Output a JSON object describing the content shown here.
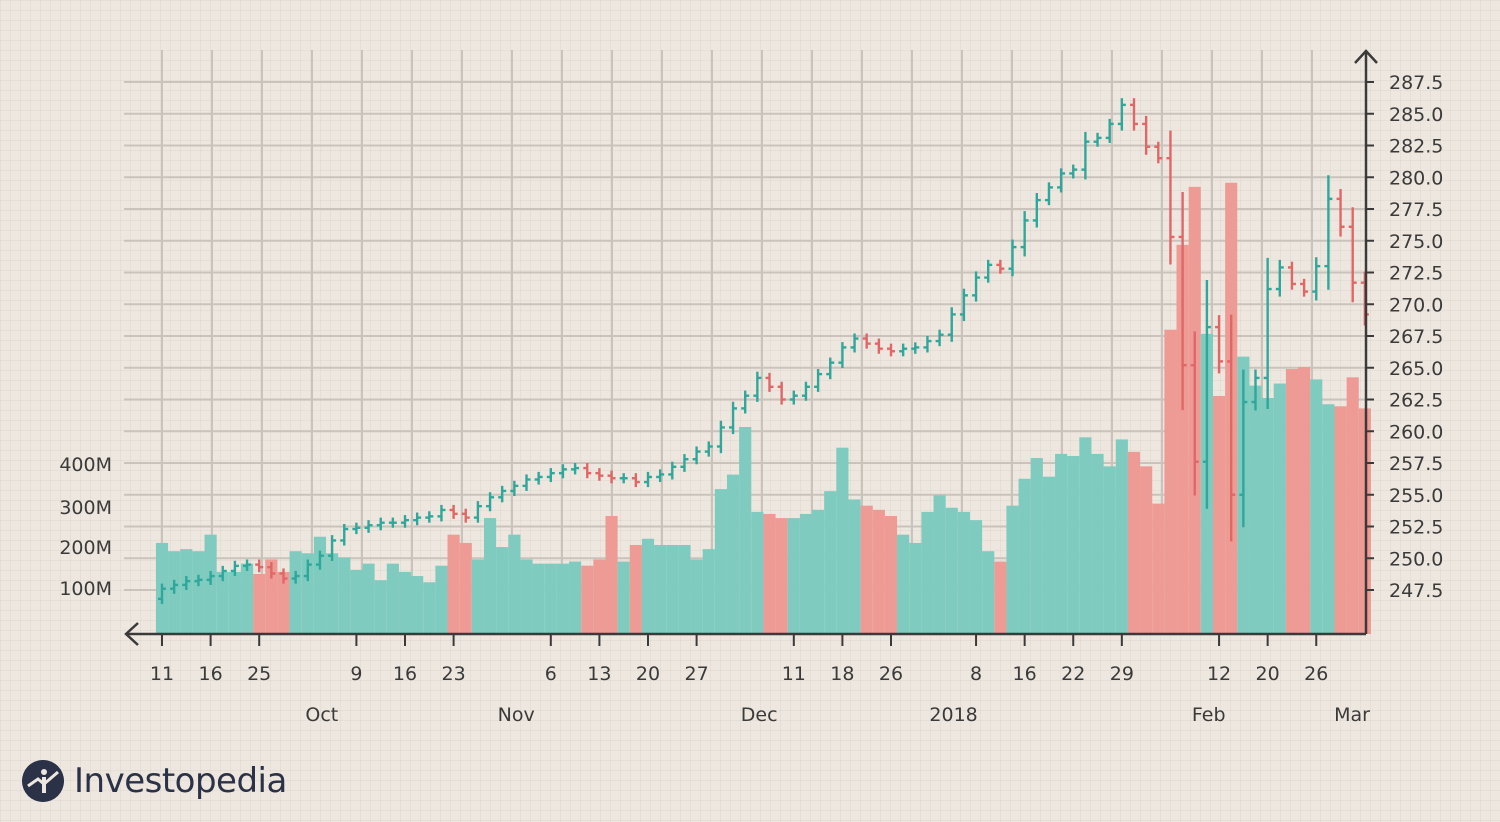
{
  "chart_data": {
    "type": "ohlc-volume",
    "title": "",
    "colors": {
      "up": "#2fa79b",
      "down": "#e06767",
      "up_vol": "#7fcbbf",
      "down_vol": "#ee9b96",
      "grid": "#c9c3bc",
      "axis": "#3a3a3a"
    },
    "y_price": {
      "ticks": [
        "247.5",
        "250.0",
        "252.5",
        "255.0",
        "257.5",
        "260.0",
        "262.5",
        "265.0",
        "267.5",
        "270.0",
        "272.5",
        "275.0",
        "277.5",
        "280.0",
        "282.5",
        "285.0",
        "287.5"
      ],
      "range": [
        244.0,
        290.0
      ]
    },
    "y_volume": {
      "ticks": [
        "100M",
        "200M",
        "300M",
        "400M"
      ],
      "range": [
        0,
        1400
      ]
    },
    "x_day_labels": [
      {
        "label": "11",
        "i": 0
      },
      {
        "label": "16",
        "i": 4
      },
      {
        "label": "25",
        "i": 8
      },
      {
        "label": "9",
        "i": 16
      },
      {
        "label": "16",
        "i": 20
      },
      {
        "label": "23",
        "i": 24
      },
      {
        "label": "6",
        "i": 32
      },
      {
        "label": "13",
        "i": 36
      },
      {
        "label": "20",
        "i": 40
      },
      {
        "label": "27",
        "i": 44
      },
      {
        "label": "11",
        "i": 52
      },
      {
        "label": "18",
        "i": 56
      },
      {
        "label": "26",
        "i": 60
      },
      {
        "label": "8",
        "i": 67
      },
      {
        "label": "16",
        "i": 71
      },
      {
        "label": "22",
        "i": 75
      },
      {
        "label": "29",
        "i": 79
      },
      {
        "label": "12",
        "i": 87
      },
      {
        "label": "20",
        "i": 91
      },
      {
        "label": "26",
        "i": 95
      }
    ],
    "x_month_labels": [
      {
        "label": "Oct",
        "i": 12
      },
      {
        "label": "Nov",
        "i": 28
      },
      {
        "label": "Dec",
        "i": 48
      },
      {
        "label": "2018",
        "i": 64
      },
      {
        "label": "Feb",
        "i": 85
      },
      {
        "label": "Mar",
        "i": 99
      }
    ],
    "n_periods": 100,
    "close": [
      247.6,
      247.9,
      248.2,
      248.3,
      248.6,
      249.0,
      249.4,
      249.5,
      249.3,
      248.8,
      248.4,
      248.6,
      249.5,
      250.2,
      251.4,
      252.3,
      252.4,
      252.6,
      252.8,
      252.8,
      253.0,
      253.2,
      253.3,
      253.8,
      253.5,
      253.2,
      254.1,
      254.8,
      255.3,
      255.7,
      256.2,
      256.4,
      256.7,
      257.0,
      257.1,
      256.7,
      256.5,
      256.3,
      256.3,
      256.0,
      256.4,
      256.6,
      257.2,
      257.8,
      258.4,
      258.8,
      260.3,
      261.8,
      262.8,
      264.2,
      263.5,
      262.5,
      262.8,
      263.5,
      264.5,
      265.4,
      266.6,
      267.3,
      266.9,
      266.5,
      266.3,
      266.5,
      266.6,
      267.1,
      267.6,
      269.2,
      270.7,
      272.1,
      273.1,
      272.8,
      274.5,
      276.6,
      278.2,
      279.2,
      280.3,
      280.6,
      282.8,
      283.1,
      284.2,
      285.7,
      284.2,
      282.4,
      281.5,
      275.3,
      265.2,
      257.6,
      268.2,
      265.5,
      255.0,
      262.3,
      264.2,
      271.2,
      272.9,
      271.6,
      271.0,
      273.0,
      278.3,
      276.1,
      271.7,
      269.2
    ],
    "volume": [
      220,
      200,
      205,
      200,
      240,
      150,
      150,
      170,
      145,
      180,
      150,
      200,
      195,
      235,
      195,
      185,
      155,
      170,
      130,
      170,
      150,
      140,
      125,
      165,
      240,
      220,
      180,
      280,
      210,
      240,
      180,
      170,
      170,
      170,
      175,
      165,
      180,
      285,
      175,
      215,
      230,
      215,
      215,
      215,
      180,
      205,
      350,
      385,
      500,
      295,
      290,
      280,
      280,
      290,
      300,
      345,
      450,
      325,
      310,
      300,
      285,
      240,
      220,
      295,
      335,
      305,
      295,
      275,
      200,
      175,
      310,
      375,
      425,
      380,
      435,
      430,
      475,
      435,
      405,
      470,
      440,
      405,
      315,
      735,
      940,
      1080,
      725,
      575,
      1090,
      670,
      600,
      570,
      605,
      640,
      645,
      615,
      555,
      550,
      620,
      545
    ]
  }
}
